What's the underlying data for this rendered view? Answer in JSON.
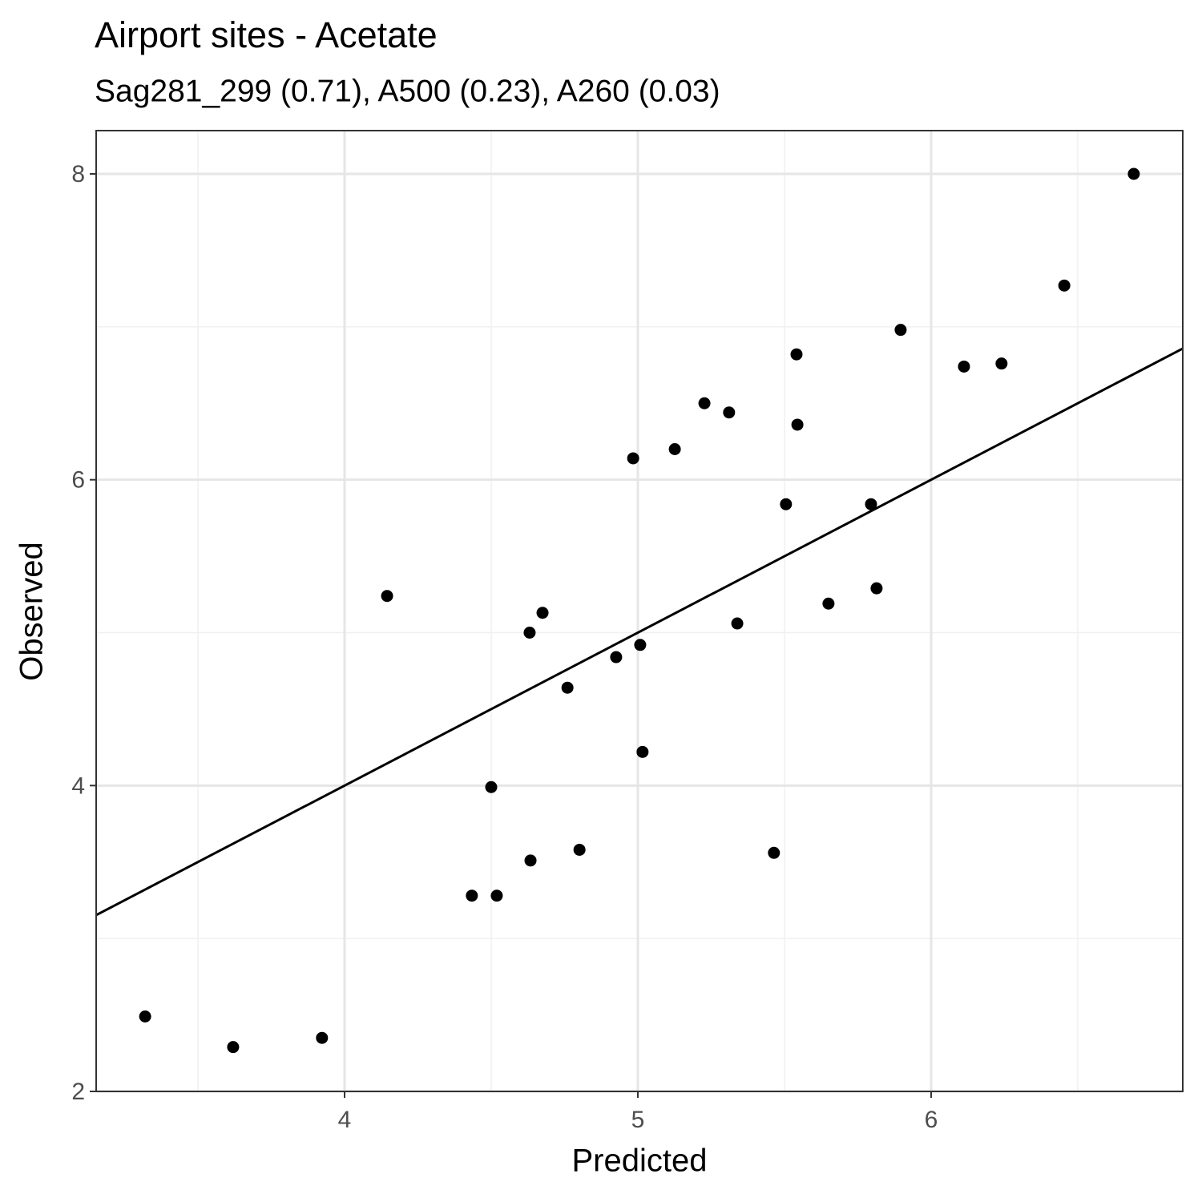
{
  "chart_data": {
    "type": "scatter",
    "title": "Airport sites - Acetate",
    "subtitle": "Sag281_299 (0.71), A500 (0.23), A260 (0.03)",
    "x_label": "Predicted",
    "y_label": "Observed",
    "x": [
      3.32,
      3.62,
      3.923,
      4.145,
      4.434,
      4.519,
      4.5,
      4.634,
      4.631,
      4.675,
      4.76,
      4.801,
      4.926,
      4.984,
      5.008,
      5.016,
      5.126,
      5.227,
      5.311,
      5.339,
      5.464,
      5.505,
      5.541,
      5.544,
      5.65,
      5.795,
      5.814,
      5.896,
      6.112,
      6.24,
      6.454,
      6.691
    ],
    "values": [
      2.49,
      2.29,
      2.35,
      5.24,
      3.28,
      3.28,
      3.99,
      3.51,
      5.0,
      5.13,
      4.64,
      3.58,
      4.84,
      6.14,
      4.92,
      4.22,
      6.2,
      6.5,
      6.44,
      5.06,
      3.56,
      5.84,
      6.82,
      6.36,
      5.19,
      5.84,
      5.29,
      6.98,
      6.74,
      6.76,
      7.27,
      8.0
    ],
    "color": "#000000",
    "abline": {
      "slope": 1,
      "intercept": 0
    },
    "xlim": [
      3.153,
      6.858
    ],
    "ylim": [
      2,
      8.283
    ],
    "xticks": [
      4,
      5,
      6
    ],
    "yticks": [
      2,
      4,
      6,
      8
    ],
    "xminor": [
      3.5,
      4.5,
      5.5,
      6.5
    ],
    "yminor": [
      3,
      5,
      7
    ],
    "grid": true
  }
}
